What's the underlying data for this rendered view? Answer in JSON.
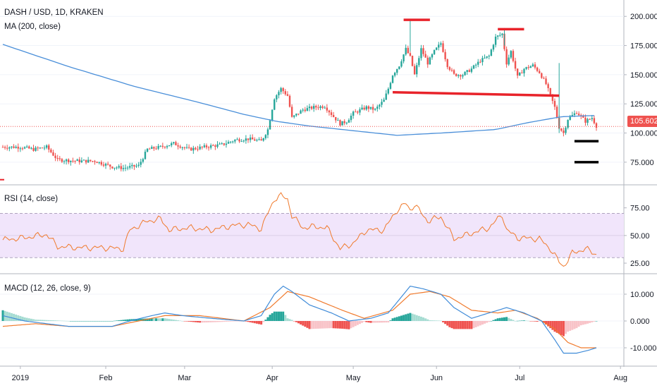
{
  "header": {
    "symbol_title": "DASH / USD, 1D, KRAKEN",
    "ma_title": "MA (200, close)",
    "rsi_title": "RSI (14, close)",
    "macd_title": "MACD (12, 26, close, 9)",
    "last_price": "105.602"
  },
  "colors": {
    "up": "#26a69a",
    "down": "#ef5350",
    "ma": "#4a8fd9",
    "rsi_line": "#f07a2c",
    "rsi_band": "#f1e5fb",
    "macd_line": "#3f8bd8",
    "signal_line": "#f07a2c",
    "hist_up_strong": "#26a69a",
    "hist_up_weak": "#a6dcd2",
    "hist_down_strong": "#ef5350",
    "hist_down_weak": "#f8c3c8",
    "annotation_red": "#e8232a",
    "annotation_black": "#000000"
  },
  "chart_data": [
    {
      "type": "candlestick",
      "title": "DASH / USD, 1D, KRAKEN",
      "overlay": "MA (200, close)",
      "y_ticks": [
        "75.000",
        "100.000",
        "125.000",
        "150.000",
        "175.000",
        "200.000"
      ],
      "ylim": [
        58,
        208
      ],
      "x_ticks": [
        "2019",
        "Feb",
        "Mar",
        "Apr",
        "May",
        "Jun",
        "Jul",
        "Aug"
      ],
      "last_price": 105.602,
      "close_series": [
        {
          "t": 0,
          "v": 88
        },
        {
          "t": 8,
          "v": 88
        },
        {
          "t": 14,
          "v": 86
        },
        {
          "t": 20,
          "v": 88
        },
        {
          "t": 25,
          "v": 77
        },
        {
          "t": 35,
          "v": 76
        },
        {
          "t": 42,
          "v": 76
        },
        {
          "t": 50,
          "v": 71
        },
        {
          "t": 55,
          "v": 70
        },
        {
          "t": 62,
          "v": 72
        },
        {
          "t": 66,
          "v": 86
        },
        {
          "t": 72,
          "v": 88
        },
        {
          "t": 78,
          "v": 91
        },
        {
          "t": 85,
          "v": 86
        },
        {
          "t": 92,
          "v": 88
        },
        {
          "t": 100,
          "v": 90
        },
        {
          "t": 106,
          "v": 94
        },
        {
          "t": 112,
          "v": 95
        },
        {
          "t": 118,
          "v": 93
        },
        {
          "t": 121,
          "v": 103
        },
        {
          "t": 124,
          "v": 130
        },
        {
          "t": 127,
          "v": 138
        },
        {
          "t": 130,
          "v": 132
        },
        {
          "t": 132,
          "v": 113
        },
        {
          "t": 137,
          "v": 120
        },
        {
          "t": 142,
          "v": 122
        },
        {
          "t": 147,
          "v": 123
        },
        {
          "t": 151,
          "v": 114
        },
        {
          "t": 154,
          "v": 108
        },
        {
          "t": 157,
          "v": 110
        },
        {
          "t": 160,
          "v": 117
        },
        {
          "t": 166,
          "v": 122
        },
        {
          "t": 170,
          "v": 120
        },
        {
          "t": 174,
          "v": 128
        },
        {
          "t": 176,
          "v": 138
        },
        {
          "t": 178,
          "v": 150
        },
        {
          "t": 181,
          "v": 158
        },
        {
          "t": 184,
          "v": 172
        },
        {
          "t": 186,
          "v": 165
        },
        {
          "t": 188,
          "v": 150
        },
        {
          "t": 191,
          "v": 172
        },
        {
          "t": 194,
          "v": 160
        },
        {
          "t": 197,
          "v": 170
        },
        {
          "t": 200,
          "v": 177
        },
        {
          "t": 203,
          "v": 158
        },
        {
          "t": 206,
          "v": 150
        },
        {
          "t": 210,
          "v": 150
        },
        {
          "t": 214,
          "v": 155
        },
        {
          "t": 218,
          "v": 162
        },
        {
          "t": 222,
          "v": 166
        },
        {
          "t": 225,
          "v": 182
        },
        {
          "t": 228,
          "v": 185
        },
        {
          "t": 230,
          "v": 160
        },
        {
          "t": 232,
          "v": 170
        },
        {
          "t": 235,
          "v": 148
        },
        {
          "t": 238,
          "v": 155
        },
        {
          "t": 242,
          "v": 158
        },
        {
          "t": 245,
          "v": 152
        },
        {
          "t": 248,
          "v": 142
        },
        {
          "t": 250,
          "v": 132
        },
        {
          "t": 252,
          "v": 122
        },
        {
          "t": 254,
          "v": 105
        },
        {
          "t": 256,
          "v": 100
        },
        {
          "t": 258,
          "v": 112
        },
        {
          "t": 262,
          "v": 118
        },
        {
          "t": 266,
          "v": 110
        },
        {
          "t": 269,
          "v": 113
        },
        {
          "t": 271,
          "v": 106
        }
      ],
      "ma_series": [
        {
          "t": 0,
          "v": 176
        },
        {
          "t": 30,
          "v": 157
        },
        {
          "t": 60,
          "v": 140
        },
        {
          "t": 90,
          "v": 126
        },
        {
          "t": 110,
          "v": 116
        },
        {
          "t": 125,
          "v": 110
        },
        {
          "t": 140,
          "v": 106
        },
        {
          "t": 170,
          "v": 100
        },
        {
          "t": 180,
          "v": 98
        },
        {
          "t": 200,
          "v": 100
        },
        {
          "t": 225,
          "v": 103
        },
        {
          "t": 240,
          "v": 109
        },
        {
          "t": 255,
          "v": 114
        },
        {
          "t": 270,
          "v": 115
        }
      ],
      "annotations": [
        {
          "kind": "resistance",
          "t_start": 183,
          "t_end": 195,
          "value": 197
        },
        {
          "kind": "resistance",
          "t_start": 226,
          "t_end": 238,
          "value": 189
        },
        {
          "kind": "neckline",
          "t_start": 178,
          "t_end": 254,
          "value_start": 135,
          "value_end": 132
        },
        {
          "kind": "target",
          "t_start": 261,
          "t_end": 272,
          "value": 93
        },
        {
          "kind": "target",
          "t_start": 261,
          "t_end": 272,
          "value": 75
        }
      ]
    },
    {
      "type": "line",
      "title": "RSI (14, close)",
      "y_ticks": [
        "25.00",
        "50.00",
        "75.00"
      ],
      "ylim": [
        18,
        92
      ],
      "band": [
        30,
        70
      ],
      "series": [
        {
          "values": [
            {
              "t": 0,
              "v": 46
            },
            {
              "t": 10,
              "v": 48
            },
            {
              "t": 20,
              "v": 51
            },
            {
              "t": 25,
              "v": 40
            },
            {
              "t": 35,
              "v": 39
            },
            {
              "t": 45,
              "v": 39
            },
            {
              "t": 55,
              "v": 38
            },
            {
              "t": 58,
              "v": 55
            },
            {
              "t": 66,
              "v": 63
            },
            {
              "t": 72,
              "v": 65
            },
            {
              "t": 76,
              "v": 55
            },
            {
              "t": 85,
              "v": 57
            },
            {
              "t": 95,
              "v": 55
            },
            {
              "t": 105,
              "v": 59
            },
            {
              "t": 112,
              "v": 60
            },
            {
              "t": 118,
              "v": 56
            },
            {
              "t": 121,
              "v": 70
            },
            {
              "t": 124,
              "v": 83
            },
            {
              "t": 127,
              "v": 86
            },
            {
              "t": 130,
              "v": 83
            },
            {
              "t": 132,
              "v": 68
            },
            {
              "t": 137,
              "v": 57
            },
            {
              "t": 142,
              "v": 58
            },
            {
              "t": 148,
              "v": 57
            },
            {
              "t": 154,
              "v": 38
            },
            {
              "t": 160,
              "v": 43
            },
            {
              "t": 166,
              "v": 55
            },
            {
              "t": 174,
              "v": 55
            },
            {
              "t": 180,
              "v": 73
            },
            {
              "t": 184,
              "v": 79
            },
            {
              "t": 186,
              "v": 73
            },
            {
              "t": 188,
              "v": 78
            },
            {
              "t": 194,
              "v": 63
            },
            {
              "t": 200,
              "v": 67
            },
            {
              "t": 203,
              "v": 57
            },
            {
              "t": 206,
              "v": 47
            },
            {
              "t": 214,
              "v": 52
            },
            {
              "t": 222,
              "v": 57
            },
            {
              "t": 228,
              "v": 69
            },
            {
              "t": 230,
              "v": 55
            },
            {
              "t": 235,
              "v": 48
            },
            {
              "t": 245,
              "v": 47
            },
            {
              "t": 250,
              "v": 38
            },
            {
              "t": 254,
              "v": 26
            },
            {
              "t": 256,
              "v": 22
            },
            {
              "t": 260,
              "v": 34
            },
            {
              "t": 266,
              "v": 38
            },
            {
              "t": 271,
              "v": 33
            }
          ]
        }
      ]
    },
    {
      "type": "line",
      "title": "MACD (12, 26, close, 9)",
      "y_ticks": [
        "-10.000",
        "0.000",
        "10.000"
      ],
      "ylim": [
        -15,
        15
      ],
      "series": [
        {
          "values": [
            {
              "t": 0,
              "v": 2
            },
            {
              "t": 10,
              "v": 0
            },
            {
              "t": 20,
              "v": -1
            },
            {
              "t": 30,
              "v": -2
            },
            {
              "t": 40,
              "v": -2
            },
            {
              "t": 50,
              "v": -2
            },
            {
              "t": 58,
              "v": 0
            },
            {
              "t": 68,
              "v": 2
            },
            {
              "t": 74,
              "v": 3
            },
            {
              "t": 82,
              "v": 2
            },
            {
              "t": 95,
              "v": 1
            },
            {
              "t": 110,
              "v": 0
            },
            {
              "t": 118,
              "v": 2
            },
            {
              "t": 124,
              "v": 10
            },
            {
              "t": 128,
              "v": 13
            },
            {
              "t": 132,
              "v": 11
            },
            {
              "t": 140,
              "v": 6
            },
            {
              "t": 150,
              "v": 3
            },
            {
              "t": 158,
              "v": 0
            },
            {
              "t": 168,
              "v": 1
            },
            {
              "t": 176,
              "v": 3
            },
            {
              "t": 182,
              "v": 9
            },
            {
              "t": 186,
              "v": 13
            },
            {
              "t": 192,
              "v": 12
            },
            {
              "t": 200,
              "v": 10
            },
            {
              "t": 206,
              "v": 5
            },
            {
              "t": 214,
              "v": 1
            },
            {
              "t": 222,
              "v": 3
            },
            {
              "t": 230,
              "v": 5
            },
            {
              "t": 238,
              "v": 3
            },
            {
              "t": 246,
              "v": 0
            },
            {
              "t": 252,
              "v": -7
            },
            {
              "t": 256,
              "v": -12
            },
            {
              "t": 262,
              "v": -12
            },
            {
              "t": 267,
              "v": -11
            },
            {
              "t": 271,
              "v": -10
            }
          ]
        },
        {
          "values": [
            {
              "t": 0,
              "v": -2
            },
            {
              "t": 15,
              "v": -1
            },
            {
              "t": 30,
              "v": -2
            },
            {
              "t": 50,
              "v": -2
            },
            {
              "t": 62,
              "v": 0
            },
            {
              "t": 74,
              "v": 2
            },
            {
              "t": 90,
              "v": 2
            },
            {
              "t": 110,
              "v": 0
            },
            {
              "t": 122,
              "v": 5
            },
            {
              "t": 130,
              "v": 11
            },
            {
              "t": 140,
              "v": 9
            },
            {
              "t": 155,
              "v": 4
            },
            {
              "t": 165,
              "v": 1
            },
            {
              "t": 178,
              "v": 4
            },
            {
              "t": 186,
              "v": 10
            },
            {
              "t": 195,
              "v": 11
            },
            {
              "t": 204,
              "v": 9
            },
            {
              "t": 214,
              "v": 4
            },
            {
              "t": 226,
              "v": 3
            },
            {
              "t": 234,
              "v": 4
            },
            {
              "t": 244,
              "v": 1
            },
            {
              "t": 252,
              "v": -3
            },
            {
              "t": 258,
              "v": -8
            },
            {
              "t": 264,
              "v": -10
            },
            {
              "t": 271,
              "v": -10
            }
          ]
        }
      ]
    }
  ]
}
